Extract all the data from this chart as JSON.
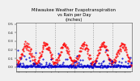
{
  "title": "Milwaukee Weather Evapotranspiration\nvs Rain per Day\n(Inches)",
  "title_fontsize": 3.8,
  "background_color": "#f0f0f0",
  "et_color": "#ff0000",
  "rain_color": "#0000cc",
  "grid_color": "#999999",
  "n_years": 6,
  "days_per_year": 52,
  "ylim": [
    -0.05,
    0.52
  ],
  "vline_count": 5,
  "ytick_values": [
    0.0,
    0.1,
    0.2,
    0.3,
    0.4,
    0.5
  ],
  "ytick_fontsize": 3.2,
  "xtick_interval": 4,
  "seed": 7
}
